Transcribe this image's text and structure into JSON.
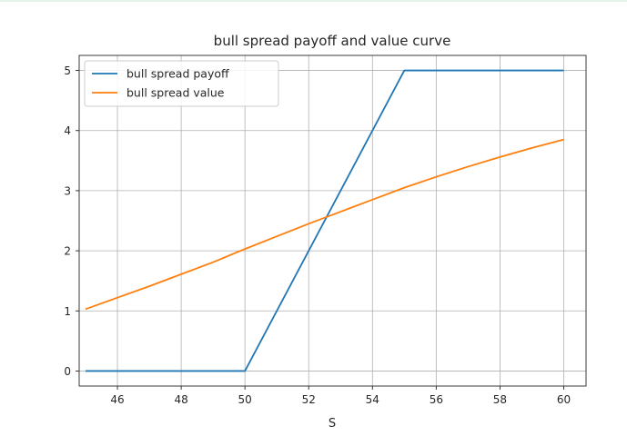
{
  "chart_data": {
    "type": "line",
    "title": "bull spread payoff and value curve",
    "xlabel": "S",
    "ylabel": "",
    "xlim": [
      44.8,
      60.7
    ],
    "ylim": [
      -0.25,
      5.25
    ],
    "xticks": [
      46,
      48,
      50,
      52,
      54,
      56,
      58,
      60
    ],
    "yticks": [
      0,
      1,
      2,
      3,
      4,
      5
    ],
    "grid": true,
    "legend": "top-left",
    "series": [
      {
        "name": "bull spread payoff",
        "color": "#1f77b4",
        "x": [
          45,
          50,
          55,
          60
        ],
        "y": [
          0,
          0,
          5,
          5
        ]
      },
      {
        "name": "bull spread value",
        "color": "#ff7f0e",
        "x": [
          45,
          46,
          47,
          48,
          49,
          50,
          51,
          52,
          53,
          54,
          55,
          56,
          57,
          58,
          59,
          60
        ],
        "y": [
          1.03,
          1.22,
          1.41,
          1.61,
          1.81,
          2.03,
          2.24,
          2.45,
          2.65,
          2.85,
          3.05,
          3.23,
          3.4,
          3.56,
          3.71,
          3.85
        ]
      }
    ]
  }
}
